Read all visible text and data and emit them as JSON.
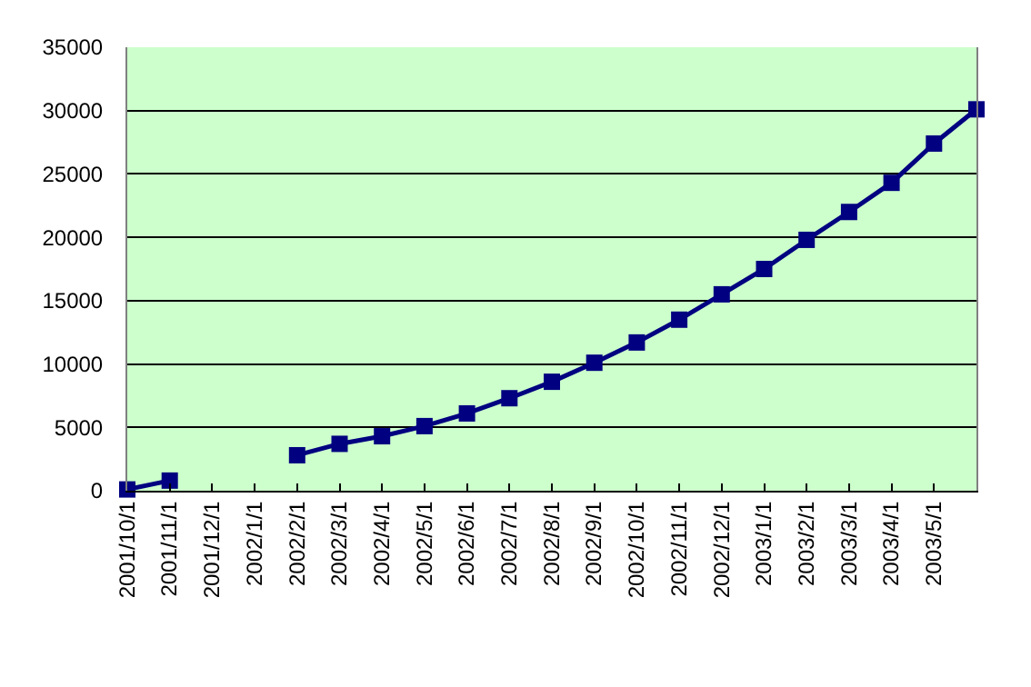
{
  "chart_data": {
    "type": "line",
    "categories": [
      "2001/10/1",
      "2001/11/1",
      "2001/12/1",
      "2002/1/1",
      "2002/2/1",
      "2002/3/1",
      "2002/4/1",
      "2002/5/1",
      "2002/6/1",
      "2002/7/1",
      "2002/8/1",
      "2002/9/1",
      "2002/10/1",
      "2002/11/1",
      "2002/12/1",
      "2003/1/1",
      "2003/2/1",
      "2003/3/1",
      "2003/4/1",
      "2003/5/1",
      null
    ],
    "series": [
      {
        "color": "#000080",
        "values": [
          100,
          800,
          null,
          null,
          2800,
          3700,
          4300,
          5100,
          6100,
          7300,
          8600,
          10100,
          11700,
          13500,
          15500,
          17500,
          19800,
          22000,
          24300,
          27400,
          30100
        ]
      }
    ],
    "ylim": [
      0,
      35000
    ],
    "yticks": [
      0,
      5000,
      10000,
      15000,
      20000,
      25000,
      30000,
      35000
    ],
    "grid": "y",
    "legend": false,
    "marker": "square",
    "line_style": "solid"
  }
}
